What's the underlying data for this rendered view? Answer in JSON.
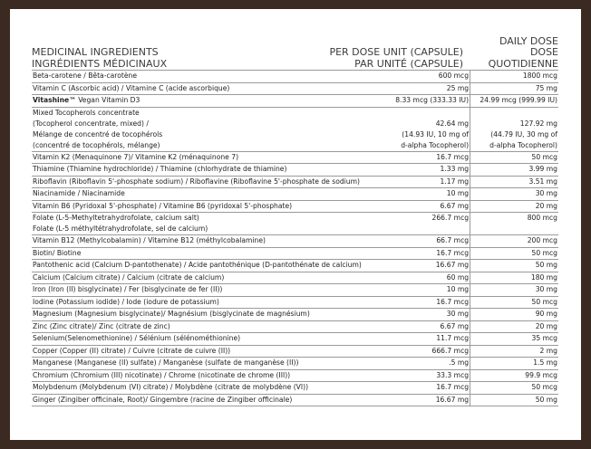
{
  "header": {
    "ingredients": [
      "MEDICINAL INGREDIENTS",
      "INGRÉDIENTS MÉDICINAUX"
    ],
    "per_dose": [
      "PER DOSE UNIT (CAPSULE)",
      "PAR UNITÉ (CAPSULE)"
    ],
    "daily_dose": [
      "DAILY DOSE",
      "DOSE",
      "QUOTIDIENNE"
    ]
  },
  "table": {
    "rows": [
      {
        "name": [
          "Beta-carotene / Bêta-carotène"
        ],
        "per_dose": [
          "600 mcg"
        ],
        "daily": [
          "1800 mcg"
        ]
      },
      {
        "name": [
          "Vitamin C (Ascorbic acid) / Vitamine C (acide ascorbique)"
        ],
        "per_dose": [
          "25 mg"
        ],
        "daily": [
          "75 mg"
        ]
      },
      {
        "brand": "Vitashine™",
        "name": [
          "Vegan Vitamin D3"
        ],
        "per_dose": [
          "8.33 mcg (333.33 IU)"
        ],
        "daily": [
          "24.99 mcg (999.99 IU)"
        ]
      },
      {
        "name": [
          "Mixed Tocopherols concentrate",
          "(Tocopherol concentrate, mixed) /",
          "Mélange de concentré de tocophérols",
          "(concentré de tocophérols, mélange)"
        ],
        "per_dose": [
          "42.64 mg",
          "(14.93 IU, 10 mg of",
          "d-alpha Tocopherol)"
        ],
        "daily": [
          "127.92 mg",
          "(44.79 IU, 30 mg of",
          "d-alpha Tocopherol)"
        ]
      },
      {
        "name": [
          "Vitamin K2 (Menaquinone 7)/ Vitamine K2 (ménaquinone 7)"
        ],
        "per_dose": [
          "16.7 mcg"
        ],
        "daily": [
          "50 mcg"
        ]
      },
      {
        "name": [
          "Thiamine (Thiamine hydrochloride) / Thiamine (chlorhydrate de thiamine)"
        ],
        "per_dose": [
          "1.33 mg"
        ],
        "daily": [
          "3.99 mg"
        ]
      },
      {
        "name": [
          "Riboflavin (Riboflavin 5'-phosphate sodium) / Riboflavine (Riboflavine 5'-phosphate de sodium)"
        ],
        "per_dose": [
          "1.17 mg"
        ],
        "daily": [
          "3.51 mg"
        ]
      },
      {
        "name": [
          "Niacinamide / Niacinamide"
        ],
        "per_dose": [
          "10 mg"
        ],
        "daily": [
          "30 mg"
        ]
      },
      {
        "name": [
          "Vitamin B6 (Pyridoxal 5'-phosphate) / Vitamine B6 (pyridoxal 5'-phosphate)"
        ],
        "per_dose": [
          "6.67 mg"
        ],
        "daily": [
          "20 mg"
        ]
      },
      {
        "name": [
          "Folate (L-5-Methyltetrahydrofolate, calcium salt)",
          "Folate (L-5 méthyltétrahydrofolate, sel de calcium)"
        ],
        "per_dose": [
          "266.7  mcg"
        ],
        "daily": [
          "800 mcg"
        ]
      },
      {
        "name": [
          "Vitamin B12 (Methylcobalamin) / Vitamine B12 (méthylcobalamine)"
        ],
        "per_dose": [
          "66.7 mcg"
        ],
        "daily": [
          "200 mcg"
        ]
      },
      {
        "name": [
          "Biotin/ Biotine"
        ],
        "per_dose": [
          "16.7 mcg"
        ],
        "daily": [
          "50 mcg"
        ]
      },
      {
        "name": [
          "Pantothenic acid (Calcium D-pantothenate) / Acide pantothénique (D-pantothénate de calcium)"
        ],
        "per_dose": [
          "16.67 mg"
        ],
        "daily": [
          "50 mg"
        ]
      },
      {
        "name": [
          "Calcium (Calcium citrate) / Calcium (citrate de calcium)"
        ],
        "per_dose": [
          "60 mg"
        ],
        "daily": [
          "180 mg"
        ]
      },
      {
        "name": [
          "Iron (Iron (II) bisglycinate) / Fer (bisglycinate de fer (II))"
        ],
        "per_dose": [
          "10 mg"
        ],
        "daily": [
          "30 mg"
        ]
      },
      {
        "name": [
          "Iodine (Potassium iodide) / Iode (iodure de potassium)"
        ],
        "per_dose": [
          "16.7 mcg"
        ],
        "daily": [
          "50 mcg"
        ]
      },
      {
        "name": [
          "Magnesium (Magnesium bisglycinate)/ Magnésium (bisglycinate de magnésium)"
        ],
        "per_dose": [
          "30 mg"
        ],
        "daily": [
          "90 mg"
        ]
      },
      {
        "name": [
          "Zinc (Zinc citrate)/ Zinc (citrate de zinc)"
        ],
        "per_dose": [
          "6.67 mg"
        ],
        "daily": [
          "20 mg"
        ]
      },
      {
        "name": [
          "Selenium(Selenomethionine) / Sélénium (sélénométhionine)"
        ],
        "per_dose": [
          "11.7 mcg"
        ],
        "daily": [
          "35 mcg"
        ]
      },
      {
        "name": [
          "Copper (Copper (II) citrate) / Cuivre (citrate de cuivre (II))"
        ],
        "per_dose": [
          "666.7 mcg"
        ],
        "daily": [
          "2 mg"
        ]
      },
      {
        "name": [
          "Manganese (Manganese (II) sulfate) / Manganèse (sulfate de manganèse (II))"
        ],
        "per_dose": [
          ".5 mg"
        ],
        "daily": [
          "1.5 mg"
        ]
      },
      {
        "name": [
          "Chromium (Chromium (III) nicotinate) / Chrome (nicotinate de chrome (III))"
        ],
        "per_dose": [
          "33.3 mcg"
        ],
        "daily": [
          "99.9 mcg"
        ]
      },
      {
        "name": [
          "Molybdenum (Molybdenum (VI) citrate) / Molybdène (citrate de molybdène (VI))"
        ],
        "per_dose": [
          "16.7 mcg"
        ],
        "daily": [
          "50 mcg"
        ]
      },
      {
        "name": [
          "Ginger (Zingiber officinale, Root)/ Gingembre (racine de Zingiber officinale)"
        ],
        "per_dose": [
          "16.67 mg"
        ],
        "daily": [
          "50 mg"
        ]
      }
    ]
  }
}
